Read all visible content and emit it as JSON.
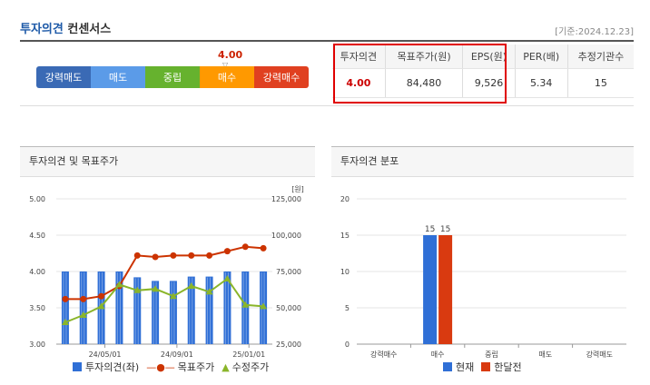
{
  "header": {
    "title_accent": "투자의견",
    "title_rest": " 컨센서스",
    "date": "[기준:2024.12.23]"
  },
  "opinion_scale": {
    "current_value": "4.00",
    "levels": [
      "강력매도",
      "매도",
      "중립",
      "매수",
      "강력매수"
    ],
    "colors": [
      "#3a6ab5",
      "#5b9be8",
      "#66b22e",
      "#ff9900",
      "#e04020"
    ]
  },
  "consensus_table": {
    "headers": [
      "투자의견",
      "목표주가(원)",
      "EPS(원)",
      "PER(배)",
      "추정기관수"
    ],
    "values": [
      "4.00",
      "84,480",
      "9,526",
      "5.34",
      "15"
    ]
  },
  "panels": {
    "left_title": "투자의견 및 목표주가",
    "right_title": "투자의견 분포"
  },
  "chart_data": [
    {
      "type": "bar+line",
      "title": "투자의견 및 목표주가",
      "y_left": {
        "ticks": [
          "5.00",
          "4.50",
          "4.00",
          "3.50",
          "3.00"
        ],
        "ylim": [
          3.0,
          5.0
        ]
      },
      "y_right": {
        "unit": "[원]",
        "ticks": [
          "125,000",
          "100,000",
          "75,000",
          "50,000",
          "25,000"
        ],
        "ylim": [
          25000,
          125000
        ]
      },
      "x_ticks": [
        "24/05/01",
        "24/09/01",
        "25/01/01"
      ],
      "series": [
        {
          "name": "투자의견(좌)",
          "kind": "bar",
          "color": "#2f6fd6",
          "values": [
            4.0,
            4.0,
            4.0,
            4.0,
            3.92,
            3.87,
            3.87,
            3.93,
            3.93,
            4.0,
            4.0,
            4.0
          ]
        },
        {
          "name": "목표주가",
          "kind": "line",
          "color": "#cc3300",
          "values": [
            56000,
            56000,
            58000,
            65000,
            86000,
            85000,
            86000,
            86000,
            86000,
            89000,
            92000,
            91000
          ]
        },
        {
          "name": "수정주가",
          "kind": "line",
          "color": "#8ab52a",
          "values": [
            40000,
            45000,
            51000,
            66000,
            62000,
            63000,
            58000,
            65000,
            61000,
            70000,
            52000,
            51000
          ]
        }
      ]
    },
    {
      "type": "bar",
      "title": "투자의견 분포",
      "categories": [
        "강력매수",
        "매수",
        "중립",
        "매도",
        "강력매도"
      ],
      "y_ticks": [
        "20",
        "15",
        "10",
        "5",
        "0"
      ],
      "ylim": [
        0,
        20
      ],
      "series": [
        {
          "name": "현재",
          "color": "#2f6fd6",
          "values": [
            0,
            15,
            0,
            0,
            0
          ]
        },
        {
          "name": "한달전",
          "color": "#d93a10",
          "values": [
            0,
            15,
            0,
            0,
            0
          ]
        }
      ]
    }
  ]
}
